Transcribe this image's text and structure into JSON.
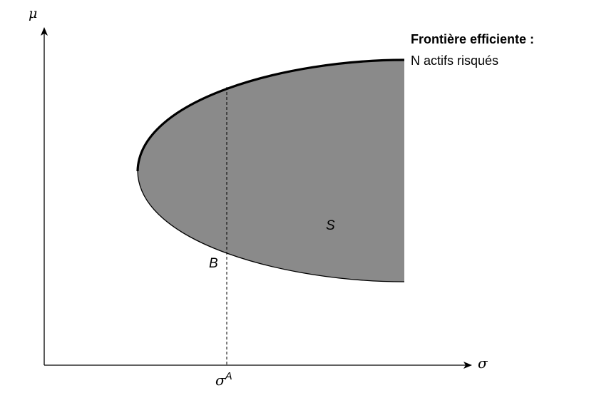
{
  "axes": {
    "y_label": "μ",
    "x_label": "σ"
  },
  "legend": {
    "title": "Frontière efficiente :",
    "subtitle": "N actifs risqués"
  },
  "labels": {
    "set_label": "S",
    "point_label": "B",
    "sigma_a_base": "σ",
    "sigma_a_sup": "A"
  },
  "colors": {
    "region_fill": "#8a8a8a",
    "stroke": "#000000",
    "background": "#ffffff"
  }
}
